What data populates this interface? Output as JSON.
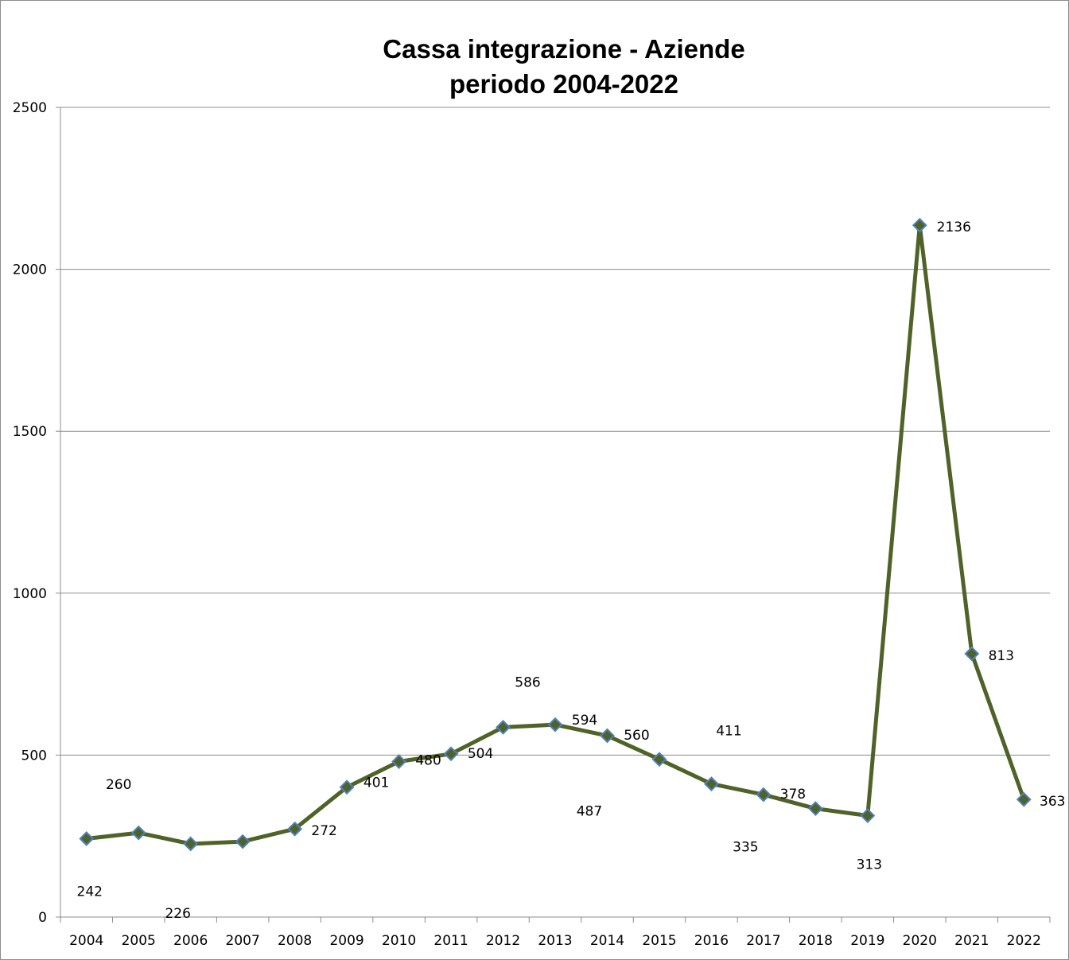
{
  "chart_data": {
    "type": "line",
    "title": [
      "Cassa integrazione - Aziende",
      "periodo 2004-2022"
    ],
    "categories": [
      "2004",
      "2005",
      "2006",
      "2007",
      "2008",
      "2009",
      "2010",
      "2011",
      "2012",
      "2013",
      "2014",
      "2015",
      "2016",
      "2017",
      "2018",
      "2019",
      "2020",
      "2021",
      "2022"
    ],
    "series": [
      {
        "values": [
          242,
          260,
          226,
          233,
          272,
          401,
          480,
          504,
          586,
          594,
          560,
          487,
          411,
          378,
          335,
          313,
          2136,
          813,
          363
        ],
        "line_color": "#4f6228",
        "marker": "diamond",
        "marker_fill": "#4f6228",
        "marker_edge": "#4f81bd"
      }
    ],
    "ylim": [
      0,
      2500
    ],
    "yticks": [
      "0",
      "500",
      "1000",
      "1500",
      "2000",
      "2500"
    ],
    "grid": "horizontal",
    "legend": "none"
  }
}
